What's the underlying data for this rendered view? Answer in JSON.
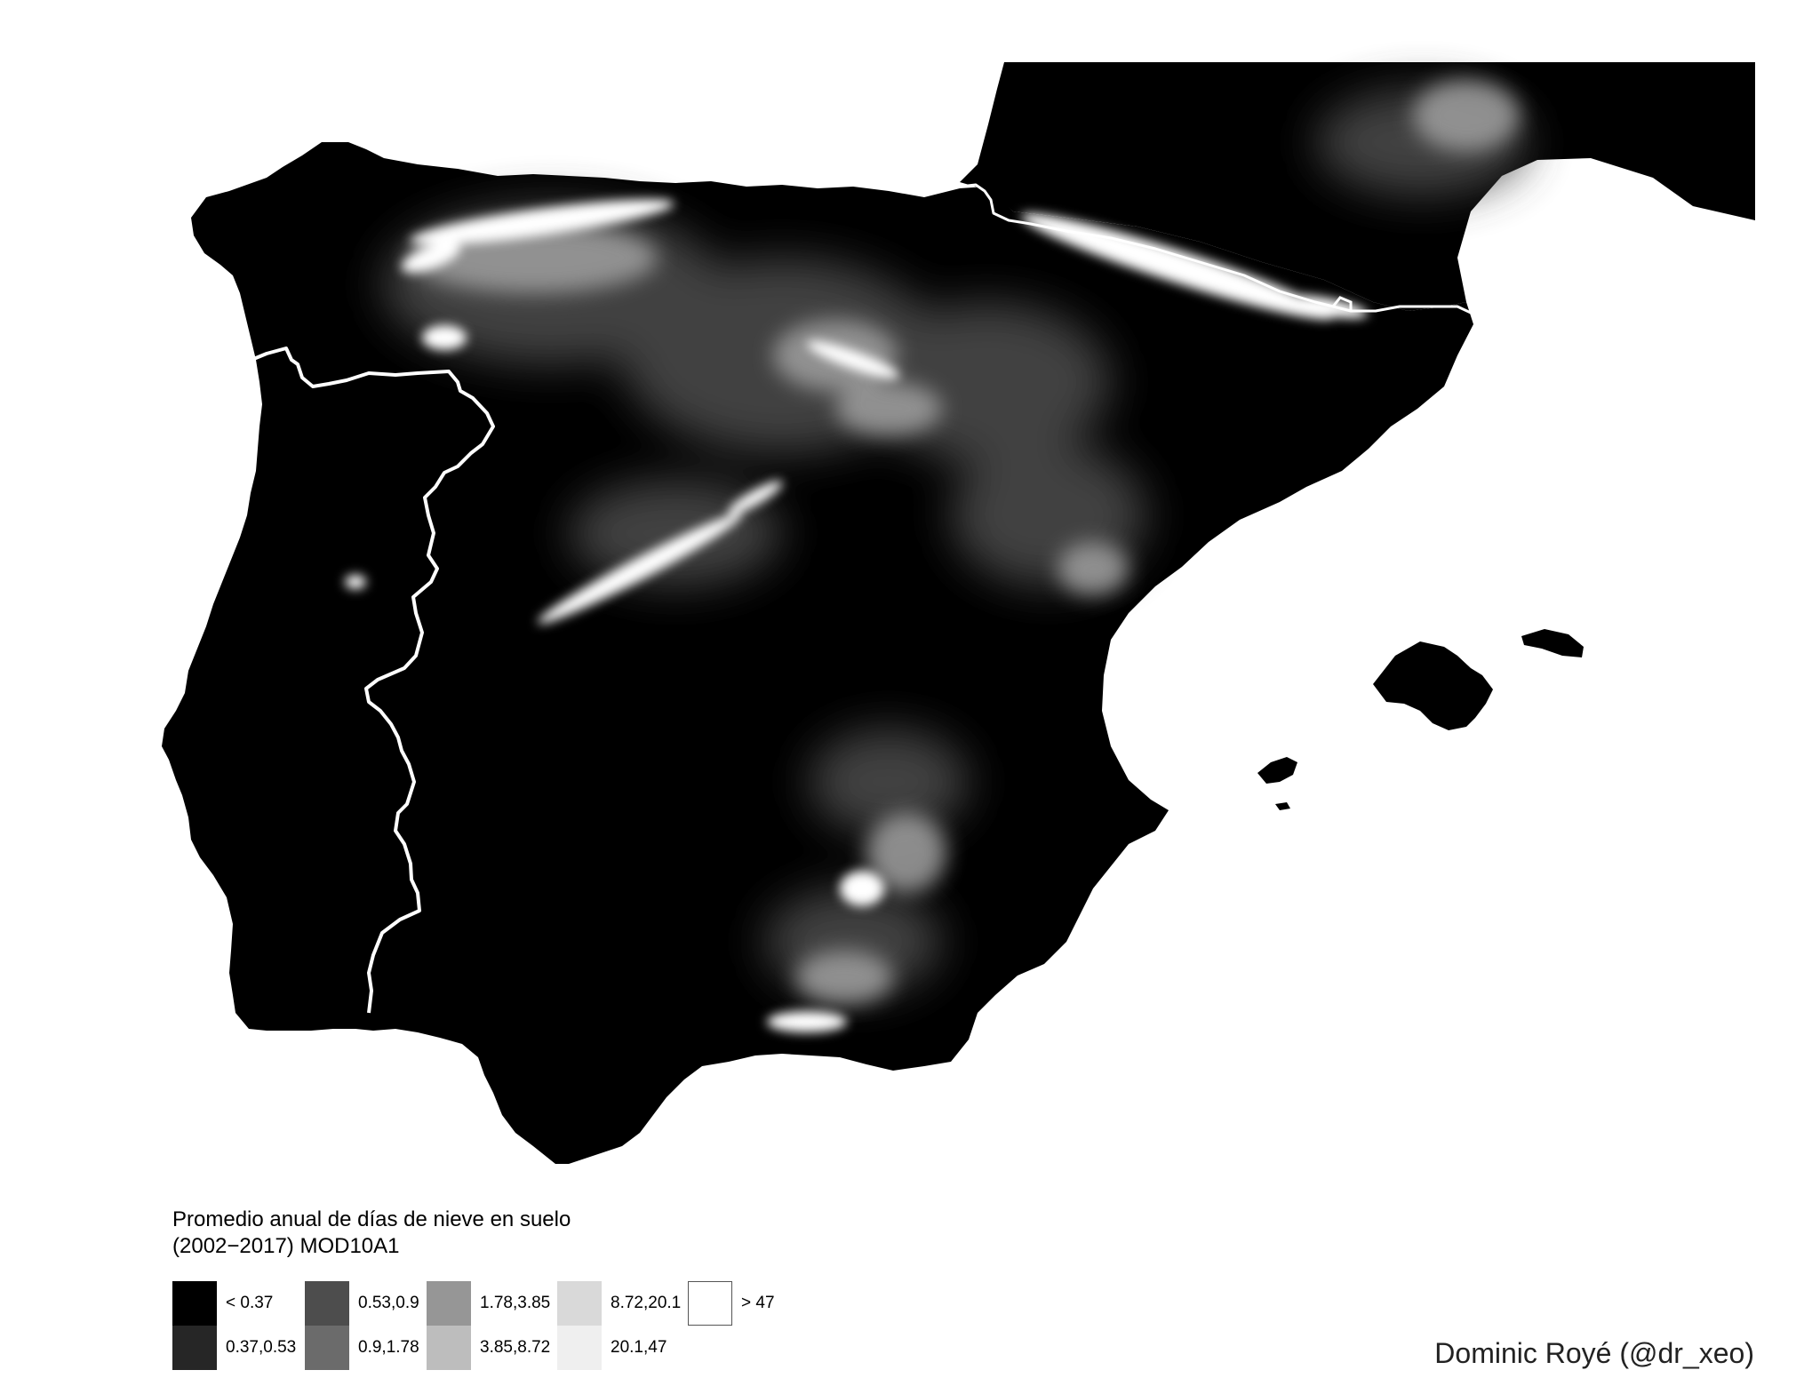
{
  "map": {
    "region": "Iberian Peninsula and Balearic Islands",
    "background_color": "#ffffff",
    "land_color": "#000000",
    "snow_color": "#ffffff",
    "border_color": "#ffffff"
  },
  "legend": {
    "title_line1": "Promedio anual de días de nieve en suelo",
    "title_line2": "(2002−2017) MOD10A1",
    "classes": [
      {
        "label": "< 0.37",
        "color": "#000000"
      },
      {
        "label": "0.37,0.53",
        "color": "#262626"
      },
      {
        "label": "0.53,0.9",
        "color": "#4d4d4d"
      },
      {
        "label": "0.9,1.78",
        "color": "#6b6b6b"
      },
      {
        "label": "1.78,3.85",
        "color": "#969696"
      },
      {
        "label": "3.85,8.72",
        "color": "#bdbdbd"
      },
      {
        "label": "8.72,20.1",
        "color": "#d9d9d9"
      },
      {
        "label": "20.1,47",
        "color": "#efefef"
      },
      {
        "label": "> 47",
        "color": "#ffffff"
      }
    ]
  },
  "credit": "Dominic Royé (@dr_xeo)"
}
